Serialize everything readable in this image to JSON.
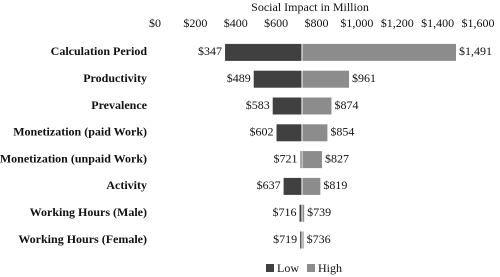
{
  "chart_data": {
    "type": "tornado",
    "x_label": "Social Impact in Million",
    "categories": [
      "Calculation Period",
      "Productivity",
      "Prevalence",
      "Monetization (paid Work)",
      "Monetization (unpaid Work)",
      "Activity",
      "Working Hours (Male)",
      "Working Hours (Female)"
    ],
    "base": 728,
    "series": [
      {
        "name": "Low",
        "color": "#404040",
        "values": [
          347,
          489,
          583,
          602,
          721,
          637,
          716,
          719
        ],
        "value_labels": [
          "$347",
          "$489",
          "$583",
          "$602",
          "$721",
          "$637",
          "$716",
          "$719"
        ]
      },
      {
        "name": "High",
        "color": "#8c8c8c",
        "values": [
          1491,
          961,
          874,
          854,
          827,
          819,
          739,
          736
        ],
        "value_labels": [
          "$1,491",
          "$961",
          "$874",
          "$854",
          "$827",
          "$819",
          "$739",
          "$736"
        ]
      }
    ],
    "xlim": [
      0,
      1600
    ],
    "xticks": [
      {
        "value": 0,
        "label": "$0"
      },
      {
        "value": 200,
        "label": "$200"
      },
      {
        "value": 400,
        "label": "$400"
      },
      {
        "value": 600,
        "label": "$600"
      },
      {
        "value": 800,
        "label": "$800"
      },
      {
        "value": 1000,
        "label": "$1,000"
      },
      {
        "value": 1200,
        "label": "$1,200"
      },
      {
        "value": 1400,
        "label": "$1,400"
      },
      {
        "value": 1600,
        "label": "$1,600"
      }
    ],
    "legend": "bottom"
  }
}
